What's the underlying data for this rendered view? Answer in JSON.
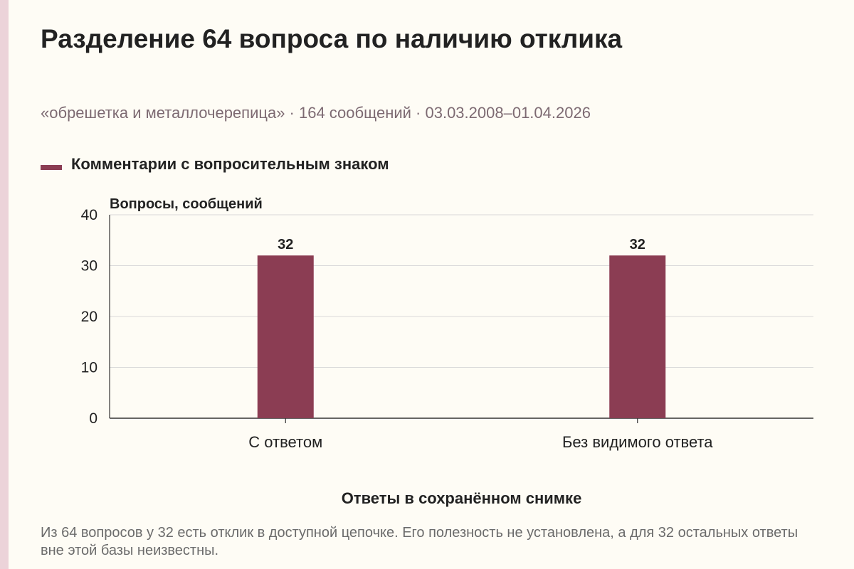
{
  "title": "Разделение 64 вопроса по наличию отклика",
  "subtitle": "«обрешетка и металлочерепица» · 164 сообщений · 03.03.2008–01.04.2026",
  "footnote": "Из 64 вопросов у 32 есть отклик в доступной цепочке. Его полезность не установлена, а для 32 остальных ответы вне этой базы неизвестны.",
  "colors": {
    "bar": "#8b3d53",
    "accent_stripe": "#ecd3d9",
    "background": "#fefcf5",
    "grid": "#d9d9d9",
    "subtitle": "#7d6a72",
    "footnote": "#6b6b6b"
  },
  "chart_data": {
    "type": "bar",
    "title": "Разделение 64 вопроса по наличию отклика",
    "categories": [
      "С ответом",
      "Без видимого ответа"
    ],
    "series": [
      {
        "name": "Комментарии с вопросительным знаком",
        "values": [
          32,
          32
        ]
      }
    ],
    "data_labels": [
      "32",
      "32"
    ],
    "xlabel": "Ответы в сохранённом снимке",
    "ylabel": "Вопросы, сообщений",
    "ylim": [
      0,
      40
    ],
    "yticks": [
      0,
      10,
      20,
      30,
      40
    ],
    "grid": true,
    "legend_position": "top-left"
  }
}
